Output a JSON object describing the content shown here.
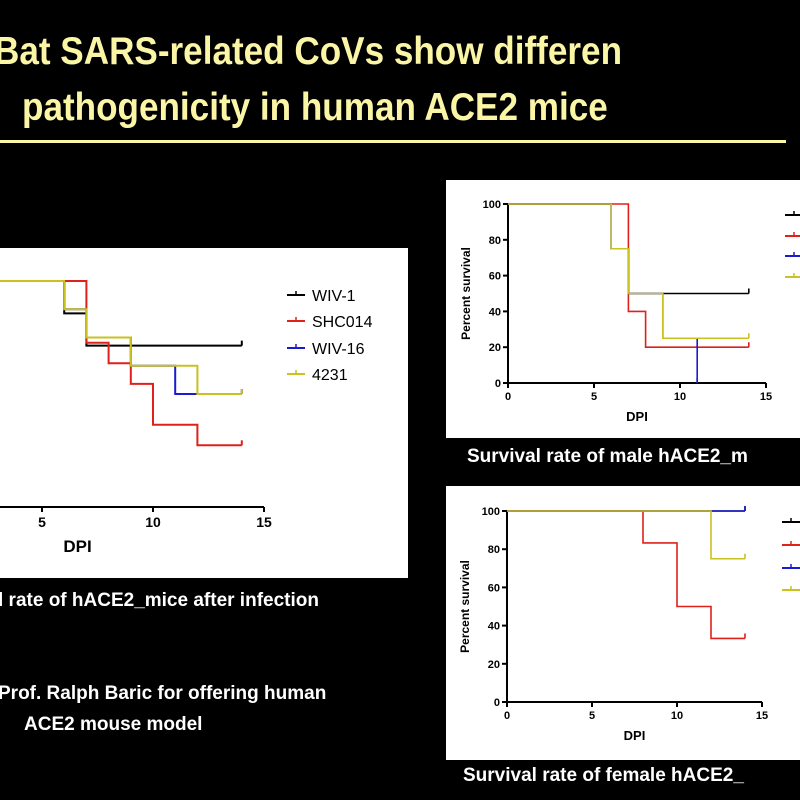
{
  "slide": {
    "title_line1": "Bat SARS-related CoVs show differen",
    "title_line2": "pathogenicity in human ACE2 mice",
    "title_color": "#fbf5a6",
    "caption_combined": "l rate of hACE2_mice after infection",
    "caption_male": "Survival rate of male hACE2_m",
    "caption_female": "Survival rate of female hACE2_",
    "acknowledgement_line1": "Prof. Ralph Baric for offering human",
    "acknowledgement_line2": "ACE2 mouse model"
  },
  "chart_data": [
    {
      "type": "line",
      "step": true,
      "xlabel": "DPI",
      "ylabel": "",
      "xlim": [
        0,
        15
      ],
      "ylim": [
        0,
        100
      ],
      "xticks": [
        "5",
        "10",
        "15"
      ],
      "yticks": [],
      "legend": "right",
      "series": [
        {
          "name": "WIV-1",
          "color": "#000000",
          "x": [
            0,
            6,
            7,
            14
          ],
          "y": [
            100,
            85.7,
            71.4,
            71.4
          ]
        },
        {
          "name": "SHC014",
          "color": "#e0201b",
          "x": [
            0,
            7,
            8,
            9,
            10,
            12,
            14
          ],
          "y": [
            100,
            72.7,
            63.6,
            54.5,
            36.4,
            27.3,
            27.3
          ]
        },
        {
          "name": "WIV-16",
          "color": "#1a1ad0",
          "x": [
            0,
            6,
            7,
            9,
            11,
            14
          ],
          "y": [
            100,
            87.5,
            75,
            62.5,
            50,
            50
          ]
        },
        {
          "name": "4231",
          "color": "#c9c21f",
          "x": [
            0,
            6,
            7,
            9,
            12,
            14
          ],
          "y": [
            100,
            87.5,
            75,
            62.5,
            50,
            50
          ]
        }
      ]
    },
    {
      "type": "line",
      "step": true,
      "xlabel": "DPI",
      "ylabel": "Percent survival",
      "xlim": [
        0,
        15
      ],
      "ylim": [
        0,
        100
      ],
      "xticks": [
        "0",
        "5",
        "10",
        "15"
      ],
      "yticks": [
        "0",
        "20",
        "40",
        "60",
        "80",
        "100"
      ],
      "legend": "right",
      "series": [
        {
          "color": "#000000",
          "x": [
            0,
            6,
            7,
            14
          ],
          "y": [
            100,
            75,
            50,
            50
          ]
        },
        {
          "color": "#e0201b",
          "x": [
            0,
            7,
            8,
            14
          ],
          "y": [
            100,
            40,
            20,
            20
          ]
        },
        {
          "color": "#1a1ad0",
          "x": [
            0,
            6,
            7,
            9,
            11
          ],
          "y": [
            100,
            75,
            50,
            25,
            0
          ]
        },
        {
          "color": "#c9c21f",
          "x": [
            0,
            6,
            7,
            9,
            14
          ],
          "y": [
            100,
            75,
            50,
            25,
            25
          ]
        }
      ]
    },
    {
      "type": "line",
      "step": true,
      "xlabel": "DPI",
      "ylabel": "Percent survival",
      "xlim": [
        0,
        15
      ],
      "ylim": [
        0,
        100
      ],
      "xticks": [
        "0",
        "5",
        "10",
        "15"
      ],
      "yticks": [
        "0",
        "20",
        "40",
        "60",
        "80",
        "100"
      ],
      "legend": "right",
      "series": [
        {
          "color": "#000000",
          "x": [
            0,
            14
          ],
          "y": [
            100,
            100
          ]
        },
        {
          "color": "#e0201b",
          "x": [
            0,
            8,
            10,
            12,
            14
          ],
          "y": [
            100,
            83.3,
            50,
            33.3,
            33.3
          ]
        },
        {
          "color": "#1a1ad0",
          "x": [
            0,
            14
          ],
          "y": [
            100,
            100
          ]
        },
        {
          "color": "#c9c21f",
          "x": [
            0,
            12,
            14
          ],
          "y": [
            100,
            75,
            75
          ]
        }
      ]
    }
  ]
}
